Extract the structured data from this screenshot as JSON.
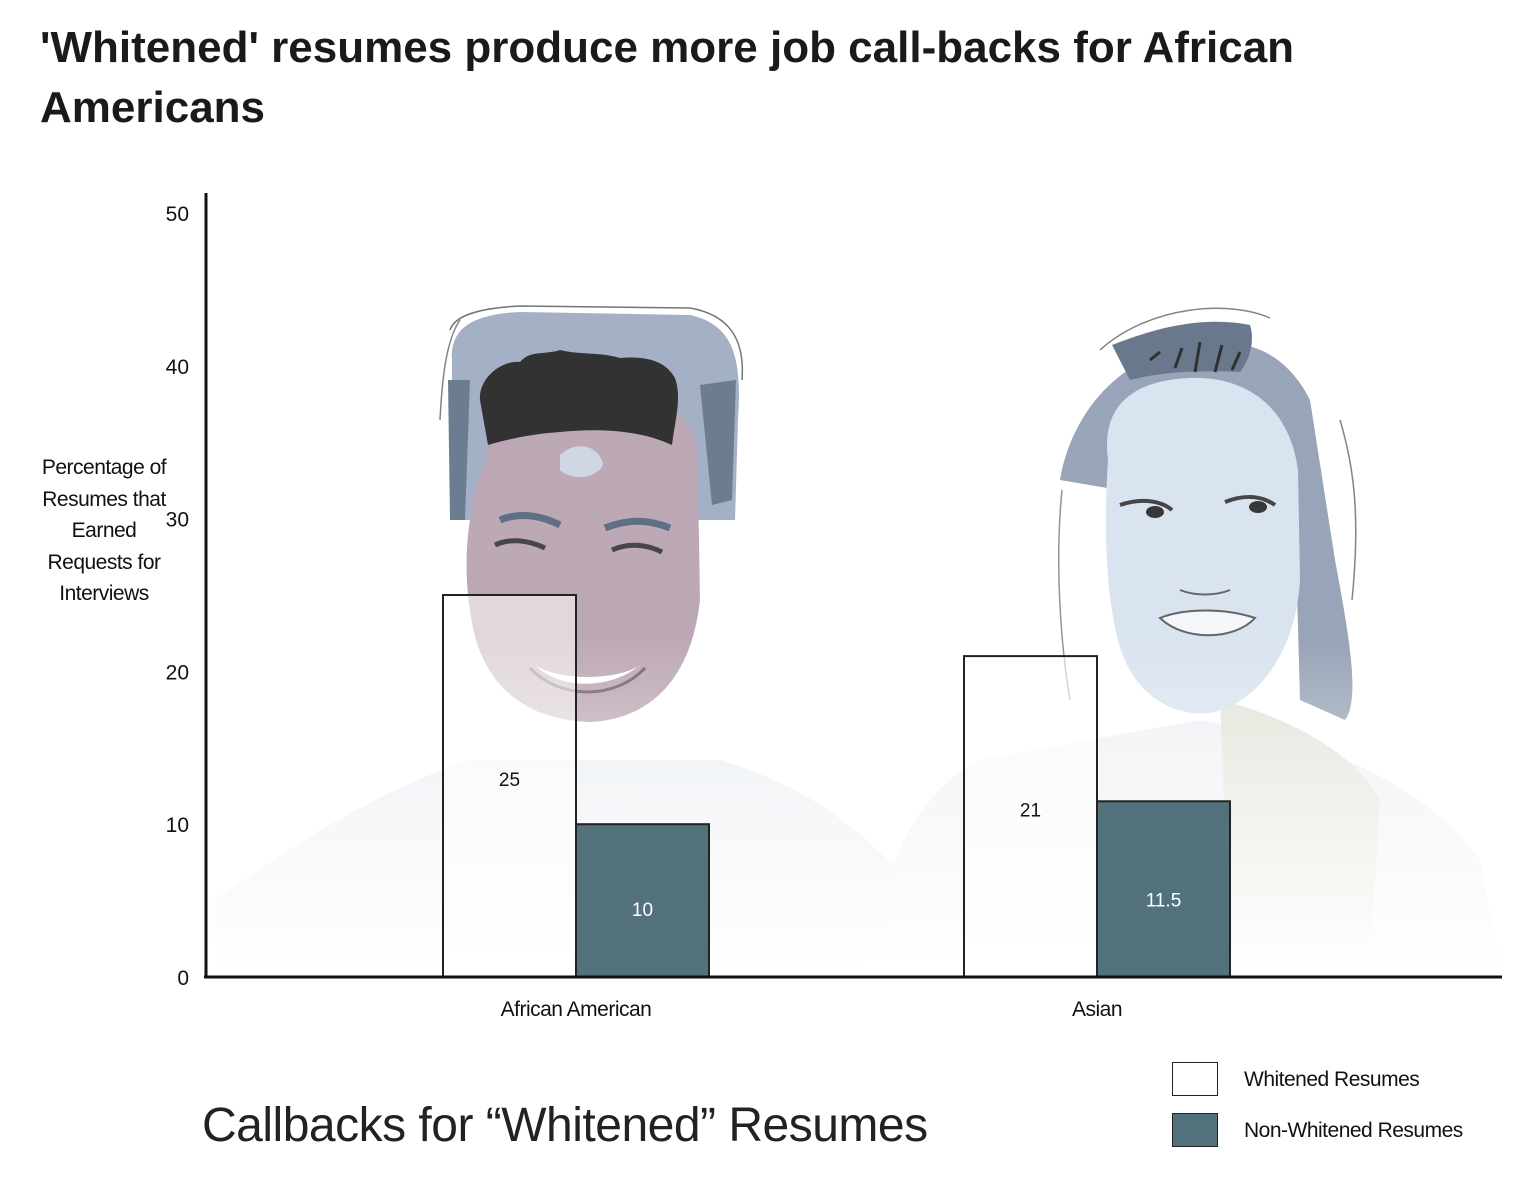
{
  "headline": "'Whitened' resumes produce more job call-backs for African Americans",
  "chart_data": {
    "type": "bar",
    "title": "Callbacks for “Whitened” Resumes",
    "ylabel": "Percentage of Resumes that Earned Requests for Interviews",
    "xlabel": "",
    "ylim": [
      0,
      50
    ],
    "yticks": [
      0,
      10,
      20,
      30,
      40,
      50
    ],
    "categories": [
      "African American",
      "Asian"
    ],
    "series": [
      {
        "name": "Whitened Resumes",
        "values": [
          25,
          21
        ],
        "labels": [
          "25",
          "21"
        ],
        "color": "#ffffff"
      },
      {
        "name": "Non-Whitened Resumes",
        "values": [
          10,
          11.5
        ],
        "labels": [
          "10",
          "11.5"
        ],
        "color": "#52717a"
      }
    ],
    "grid": false,
    "legend": "bottom-right",
    "background_illustration": [
      "african-american-man-portrait",
      "asian-woman-portrait"
    ]
  }
}
